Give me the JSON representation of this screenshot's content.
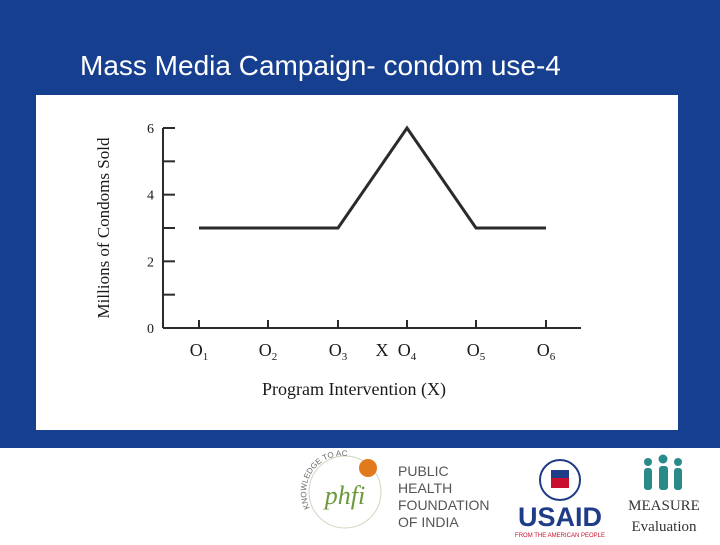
{
  "slide": {
    "title": "Mass Media Campaign- condom use-4"
  },
  "colors": {
    "band": "#173f8f",
    "line": "#2b2b2b",
    "phfi_orange": "#e07a1a",
    "phfi_green": "#6a9a3a",
    "usaid_blue": "#1f3c88",
    "usaid_red": "#c8102e",
    "measure_teal": "#2a8a8a"
  },
  "chart_data": {
    "type": "line",
    "title": "",
    "xlabel": "Program Intervention (X)",
    "ylabel": "Millions of Condoms Sold",
    "ylim": [
      0,
      6
    ],
    "yticks": [
      "0",
      "2",
      "4",
      "6"
    ],
    "categories": [
      "O1",
      "O2",
      "O3",
      "X",
      "O4",
      "O5",
      "O6"
    ],
    "x_tick_labels": [
      {
        "main": "O",
        "sub": "1"
      },
      {
        "main": "O",
        "sub": "2"
      },
      {
        "main": "O",
        "sub": "3"
      },
      {
        "main": "X",
        "sub": ""
      },
      {
        "main": "O",
        "sub": "4"
      },
      {
        "main": "O",
        "sub": "5"
      },
      {
        "main": "O",
        "sub": "6"
      }
    ],
    "series": [
      {
        "points": [
          {
            "x": "O1",
            "y": 3
          },
          {
            "x": "O2",
            "y": 3
          },
          {
            "x": "O3",
            "y": 3
          },
          {
            "x": "O4",
            "y": 6
          },
          {
            "x": "O5",
            "y": 3
          },
          {
            "x": "O6",
            "y": 3
          }
        ]
      }
    ],
    "grid": false
  },
  "footer": {
    "phfi_ring_text": "KNOWLEDGE TO ACTION",
    "phfi_mark": "phfi",
    "phfi_name_lines": [
      "PUBLIC",
      "HEALTH",
      "FOUNDATION",
      "OF INDIA"
    ],
    "usaid_word": "USAID",
    "usaid_tagline": "FROM THE AMERICAN PEOPLE",
    "measure_word": "MEASURE",
    "measure_sub": "Evaluation"
  }
}
